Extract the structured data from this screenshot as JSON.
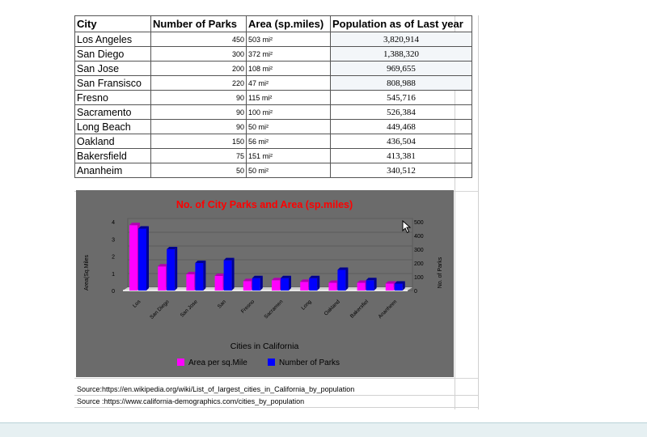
{
  "table": {
    "headers": [
      "City",
      "Number of Parks",
      "Area (sp.miles)",
      "Population as of Last year"
    ],
    "rows": [
      {
        "city": "Los Angeles",
        "parks": "450",
        "area": "503 mi²",
        "population": "3,820,914"
      },
      {
        "city": "San Diego",
        "parks": "300",
        "area": "372 mi²",
        "population": "1,388,320"
      },
      {
        "city": "San Jose",
        "parks": "200",
        "area": "108 mi²",
        "population": "969,655"
      },
      {
        "city": "San Fransisco",
        "parks": "220",
        "area": "47 mi²",
        "population": "808,988"
      },
      {
        "city": "Fresno",
        "parks": "90",
        "area": "115 mi²",
        "population": "545,716"
      },
      {
        "city": "Sacramento",
        "parks": "90",
        "area": "100 mi²",
        "population": "526,384"
      },
      {
        "city": "Long Beach",
        "parks": "90",
        "area": "50 mi²",
        "population": "449,468"
      },
      {
        "city": "Oakland",
        "parks": "150",
        "area": "56 mi²",
        "population": "436,504"
      },
      {
        "city": "Bakersfield",
        "parks": "75",
        "area": "151 mi²",
        "population": "413,381"
      },
      {
        "city": "Ananheim",
        "parks": "50",
        "area": "50 mi²",
        "population": "340,512"
      }
    ]
  },
  "chart_data": {
    "type": "bar",
    "title": "No. of City Parks and Area (sp.miles)",
    "xlabel": "Cities in California",
    "ylabel_left": "Area(Sq.Miles",
    "ylabel_right": "No. of Parks",
    "categories": [
      "Los",
      "San Diego",
      "San Jose",
      "San",
      "Fresno",
      "Sacramen",
      "Long",
      "Oakland",
      "Bakersfiel",
      "Ananheim"
    ],
    "left_axis": {
      "ticks": [
        "0",
        "1",
        "2",
        "3",
        "4"
      ],
      "ylim": [
        0,
        4
      ]
    },
    "right_axis": {
      "ticks": [
        "0",
        "100",
        "200",
        "300",
        "400",
        "500"
      ],
      "ylim": [
        0,
        500
      ]
    },
    "series": [
      {
        "name": "Area per sq.Mile",
        "axis": "left",
        "color": "#ff00ff",
        "values": [
          3.8,
          1.4,
          0.95,
          0.85,
          0.55,
          0.6,
          0.5,
          0.45,
          0.45,
          0.4
        ]
      },
      {
        "name": "Number of Parks",
        "axis": "right",
        "color": "#0000ff",
        "values": [
          450,
          300,
          200,
          220,
          90,
          90,
          90,
          150,
          75,
          50
        ]
      }
    ],
    "legend_position": "bottom",
    "background": "#6b6b6b",
    "title_color": "#ff0000"
  },
  "sources": [
    "Source:https://en.wikipedia.org/wiki/List_of_largest_cities_in_California_by_population",
    "Source :https://www.california-demographics.com/cities_by_population"
  ]
}
